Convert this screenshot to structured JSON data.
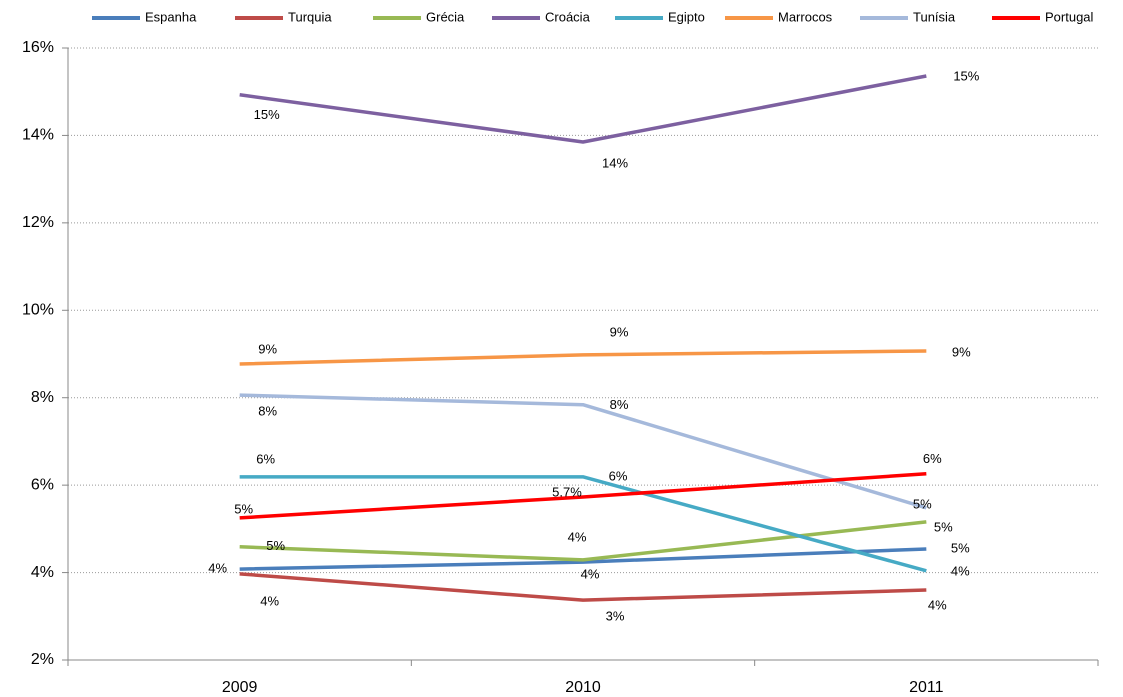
{
  "chart_data": {
    "type": "line",
    "categories": [
      "2009",
      "2010",
      "2011"
    ],
    "ylim": [
      2,
      16
    ],
    "yticks": [
      {
        "value": 2,
        "label": "2%"
      },
      {
        "value": 4,
        "label": "4%"
      },
      {
        "value": 6,
        "label": "6%"
      },
      {
        "value": 8,
        "label": "8%"
      },
      {
        "value": 10,
        "label": "10%"
      },
      {
        "value": 12,
        "label": "12%"
      },
      {
        "value": 14,
        "label": "14%"
      },
      {
        "value": 16,
        "label": "16%"
      }
    ],
    "grid": true,
    "legend": "top",
    "series": [
      {
        "name": "Espanha",
        "color": "#4a7ebb",
        "values": [
          4.08,
          4.24,
          4.54
        ],
        "value_labels": [
          "4%",
          "4%",
          "5%"
        ]
      },
      {
        "name": "Turquia",
        "color": "#be4b48",
        "values": [
          3.97,
          3.37,
          3.6
        ],
        "value_labels": [
          "4%",
          "3%",
          "4%"
        ]
      },
      {
        "name": "Grécia",
        "color": "#98b954",
        "values": [
          4.59,
          4.29,
          5.16
        ],
        "value_labels": [
          "5%",
          "4%",
          "5%"
        ]
      },
      {
        "name": "Croácia",
        "color": "#7d60a0",
        "values": [
          14.93,
          13.85,
          15.36
        ],
        "value_labels": [
          "15%",
          "14%",
          "15%"
        ]
      },
      {
        "name": "Egipto",
        "color": "#46aac5",
        "values": [
          6.19,
          6.19,
          4.04
        ],
        "value_labels": [
          "6%",
          "6%",
          "4%"
        ]
      },
      {
        "name": "Marrocos",
        "color": "#f79646",
        "values": [
          8.77,
          8.98,
          9.07
        ],
        "value_labels": [
          "9%",
          "9%",
          "9%"
        ]
      },
      {
        "name": "Tunísia",
        "color": "#a5b9db",
        "values": [
          8.06,
          7.84,
          5.48
        ],
        "value_labels": [
          "8%",
          "8%",
          "5%"
        ]
      },
      {
        "name": "Portugal",
        "color": "#ff0000",
        "values": [
          5.25,
          5.73,
          6.26
        ],
        "value_labels": [
          "5%",
          "5.7%",
          "6%"
        ]
      }
    ]
  }
}
